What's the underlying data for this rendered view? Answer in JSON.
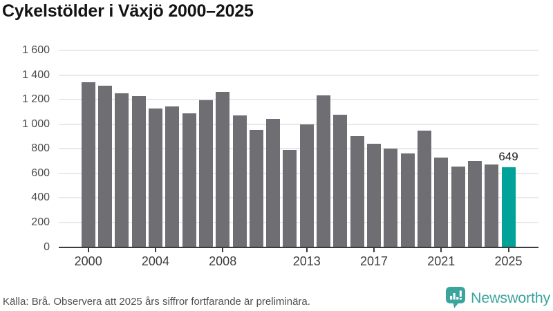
{
  "header": {
    "title": "Cykelstölder i Växjö 2000–2025"
  },
  "chart_data": {
    "type": "bar",
    "title": "Cykelstölder i Växjö 2000–2025",
    "categories": [
      2000,
      2001,
      2002,
      2003,
      2004,
      2005,
      2006,
      2007,
      2008,
      2009,
      2010,
      2011,
      2012,
      2013,
      2014,
      2015,
      2016,
      2017,
      2018,
      2019,
      2020,
      2021,
      2022,
      2023,
      2024,
      2025
    ],
    "values": [
      1340,
      1315,
      1250,
      1230,
      1130,
      1145,
      1090,
      1195,
      1260,
      1070,
      955,
      1045,
      790,
      1000,
      1235,
      1075,
      900,
      840,
      800,
      760,
      945,
      730,
      655,
      700,
      670,
      649
    ],
    "highlight_index": 25,
    "highlight_value_label": "649",
    "xlabel": "",
    "ylabel": "",
    "ylim": [
      0,
      1600
    ],
    "yticks": [
      0,
      200,
      400,
      600,
      800,
      1000,
      1200,
      1400,
      1600
    ],
    "ytick_labels": [
      "0",
      "200",
      "400",
      "600",
      "800",
      "1 000",
      "1 200",
      "1 400",
      "1 600"
    ],
    "xticks": [
      2000,
      2004,
      2008,
      2013,
      2017,
      2021,
      2025
    ],
    "xtick_labels": [
      "2000",
      "2004",
      "2008",
      "2013",
      "2017",
      "2021",
      "2025"
    ],
    "grid": true,
    "legend": false,
    "colors": {
      "bar": "#6e6e73",
      "highlight_bar": "#00a29a",
      "gridline": "#e9e9e9",
      "axis_line": "#3b3b3b",
      "tick_label": "#4a4a4a",
      "annotation": "#1a1a1a"
    }
  },
  "footer": {
    "source": "Källa: Brå. Observera att 2025 års siffror fortfarande är preliminära."
  },
  "logo": {
    "brand": "Newsworthy",
    "icon": "newsworthy-chart-bubble-icon",
    "color": "#3ba49c"
  }
}
